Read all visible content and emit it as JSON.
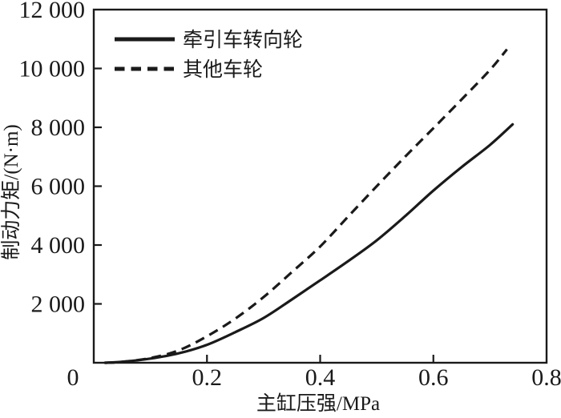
{
  "chart_data": {
    "type": "line",
    "title": "",
    "xlabel": "主缸压强/MPa",
    "ylabel": "制动力矩/(N·m)",
    "xlim": [
      0,
      0.8
    ],
    "ylim": [
      0,
      12000
    ],
    "x_ticks": [
      0,
      0.2,
      0.4,
      0.6,
      0.8
    ],
    "x_tick_labels": [
      "0",
      "0.2",
      "0.4",
      "0.6",
      "0.8"
    ],
    "y_ticks": [
      2000,
      4000,
      6000,
      8000,
      10000,
      12000
    ],
    "y_tick_labels": [
      "2 000",
      "4 000",
      "6 000",
      "8 000",
      "10 000",
      "12 000"
    ],
    "grid": false,
    "legend_position": "top-left-inside",
    "axis_color": "#1a1a1a",
    "background": "#ffffff",
    "series": [
      {
        "name": "牵引车转向轮",
        "line_style": "solid",
        "color": "#1a1a1a",
        "x": [
          0.02,
          0.05,
          0.1,
          0.15,
          0.2,
          0.25,
          0.3,
          0.35,
          0.4,
          0.45,
          0.5,
          0.55,
          0.6,
          0.65,
          0.7,
          0.74
        ],
        "y": [
          0,
          30,
          140,
          320,
          610,
          1040,
          1520,
          2150,
          2800,
          3460,
          4160,
          4980,
          5850,
          6650,
          7400,
          8100
        ]
      },
      {
        "name": "其他车轮",
        "line_style": "dashed",
        "color": "#1a1a1a",
        "x": [
          0.02,
          0.05,
          0.1,
          0.15,
          0.2,
          0.25,
          0.3,
          0.35,
          0.4,
          0.45,
          0.5,
          0.55,
          0.6,
          0.65,
          0.7,
          0.73
        ],
        "y": [
          0,
          30,
          160,
          420,
          900,
          1500,
          2230,
          3080,
          3950,
          4980,
          6000,
          7000,
          7970,
          8950,
          9950,
          10650
        ]
      }
    ]
  }
}
